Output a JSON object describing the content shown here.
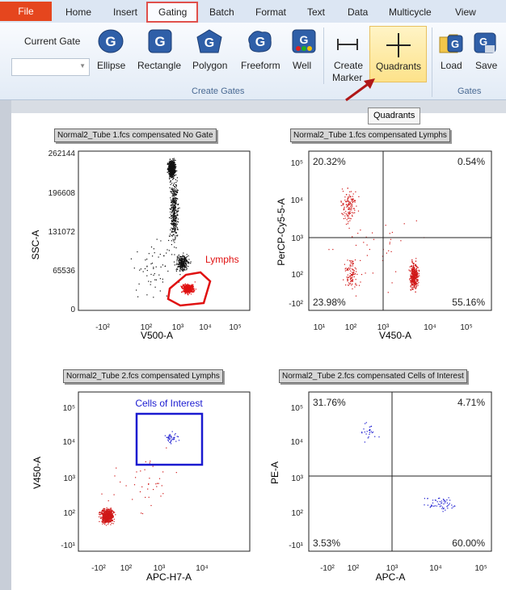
{
  "menu": {
    "file": "File",
    "tabs": [
      "Home",
      "Insert",
      "Gating",
      "Batch",
      "Format",
      "Text",
      "Data",
      "Multicycle",
      "View"
    ]
  },
  "ribbon": {
    "current_gate_label": "Current Gate",
    "current_gate_value": "",
    "buttons": {
      "ellipse": "Ellipse",
      "rectangle": "Rectangle",
      "polygon": "Polygon",
      "freeform": "Freeform",
      "well": "Well",
      "create_marker_1": "Create",
      "create_marker_2": "Marker",
      "quadrants": "Quadrants",
      "load": "Load",
      "save": "Save"
    },
    "groups": {
      "create_gates": "Create Gates",
      "gates": "Gates"
    },
    "tooltip": "Quadrants"
  },
  "plots": {
    "p1": {
      "title": "Normal2_Tube 1.fcs compensated No Gate",
      "xlabel": "V500-A",
      "ylabel": "SSC-A",
      "yticks": [
        "262144",
        "196608",
        "131072",
        "65536",
        "0"
      ],
      "xticks": [
        "-10²",
        "10²",
        "10³",
        "10⁴",
        "10⁵"
      ],
      "gate_label": "Lymphs"
    },
    "p2": {
      "title": "Normal2_Tube 1.fcs compensated Lymphs",
      "xlabel": "V450-A",
      "ylabel": "PerCP-Cy5-5-A",
      "yticks": [
        "10⁵",
        "10⁴",
        "10³",
        "10²",
        "-10²"
      ],
      "xticks": [
        "10¹",
        "10²",
        "10³",
        "10⁴",
        "10⁵"
      ],
      "q_ul": "20.32%",
      "q_ur": "0.54%",
      "q_ll": "23.98%",
      "q_lr": "55.16%"
    },
    "p3": {
      "title": "Normal2_Tube 2.fcs compensated Lymphs",
      "xlabel": "APC-H7-A",
      "ylabel": "V450-A",
      "yticks": [
        "10⁵",
        "10⁴",
        "10³",
        "10²",
        "-10¹"
      ],
      "xticks": [
        "-10²",
        "10²",
        "10³",
        "10⁴"
      ],
      "gate_label": "Cells of Interest"
    },
    "p4": {
      "title": "Normal2_Tube 2.fcs compensated Cells of Interest",
      "xlabel": "APC-A",
      "ylabel": "PE-A",
      "yticks": [
        "10⁵",
        "10⁴",
        "10³",
        "10²",
        "-10¹"
      ],
      "xticks": [
        "-10²",
        "10²",
        "10³",
        "10⁴",
        "10⁵"
      ],
      "q_ul": "31.76%",
      "q_ur": "4.71%",
      "q_ll": "3.53%",
      "q_lr": "60.00%"
    }
  },
  "colors": {
    "gate_red": "#e01010",
    "gate_blue": "#1a1ad0",
    "accent": "#e5461e"
  }
}
